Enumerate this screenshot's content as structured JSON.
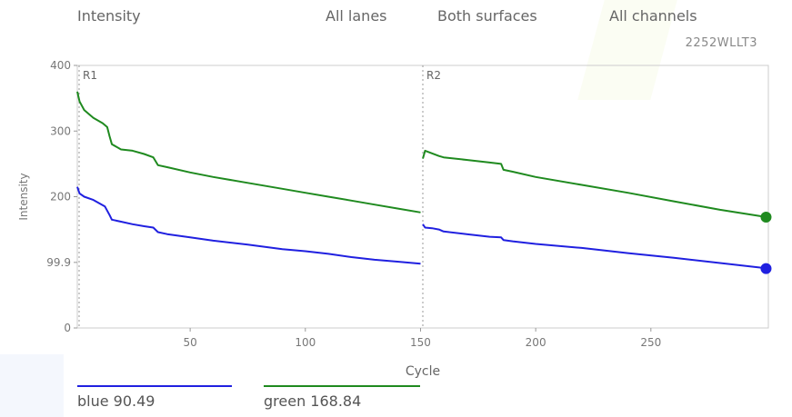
{
  "header": {
    "title": "Intensity",
    "lanes": "All lanes",
    "surfaces": "Both surfaces",
    "channels": "All channels",
    "run_id": "2252WLLT3"
  },
  "colors": {
    "blue": "#2020e0",
    "green": "#1f8a1f"
  },
  "legend": [
    {
      "color": "blue",
      "label": "blue 90.49"
    },
    {
      "color": "green",
      "label": "green 168.84"
    }
  ],
  "chart_data": {
    "type": "line",
    "xlabel": "Cycle",
    "ylabel": "Intensity",
    "xlim": [
      1,
      301
    ],
    "ylim": [
      0,
      400
    ],
    "x_ticks": [
      50,
      100,
      150,
      200,
      250
    ],
    "y_ticks": [
      0,
      99.9,
      200,
      300,
      400
    ],
    "y_tick_labels": [
      "0",
      "99.9",
      "200",
      "300",
      "400"
    ],
    "read_markers": [
      {
        "label": "R1",
        "cycle": 1
      },
      {
        "label": "R2",
        "cycle": 151
      }
    ],
    "segments_breaks": [
      151
    ],
    "grid": false,
    "series": [
      {
        "name": "blue",
        "color": "blue",
        "x": [
          1,
          2,
          4,
          8,
          13,
          15,
          16,
          20,
          25,
          30,
          34,
          36,
          40,
          50,
          60,
          75,
          90,
          100,
          110,
          120,
          130,
          140,
          150,
          151,
          152,
          155,
          158,
          160,
          170,
          180,
          185,
          186,
          190,
          200,
          220,
          240,
          260,
          280,
          300
        ],
        "y": [
          215,
          205,
          200,
          195,
          185,
          172,
          165,
          162,
          158,
          155,
          153,
          146,
          143,
          138,
          133,
          127,
          120,
          117,
          113,
          108,
          104,
          101,
          98,
          158,
          153,
          152,
          150,
          147,
          143,
          139,
          138,
          134,
          132,
          128,
          122,
          114,
          107,
          99,
          91
        ]
      },
      {
        "name": "green",
        "color": "green",
        "x": [
          1,
          2,
          4,
          8,
          12,
          14,
          15,
          16,
          20,
          25,
          30,
          34,
          36,
          40,
          50,
          60,
          75,
          90,
          100,
          110,
          120,
          130,
          140,
          150,
          151,
          152,
          155,
          158,
          160,
          170,
          180,
          185,
          186,
          190,
          200,
          220,
          240,
          260,
          280,
          300
        ],
        "y": [
          360,
          345,
          332,
          320,
          312,
          306,
          292,
          280,
          272,
          270,
          265,
          260,
          248,
          245,
          237,
          230,
          221,
          212,
          206,
          200,
          194,
          188,
          182,
          176,
          258,
          270,
          266,
          262,
          260,
          256,
          252,
          250,
          241,
          238,
          230,
          218,
          206,
          193,
          180,
          169
        ]
      }
    ],
    "endpoints": [
      {
        "series": "blue",
        "x": 300,
        "y": 90.49
      },
      {
        "series": "green",
        "x": 300,
        "y": 168.84
      }
    ]
  }
}
